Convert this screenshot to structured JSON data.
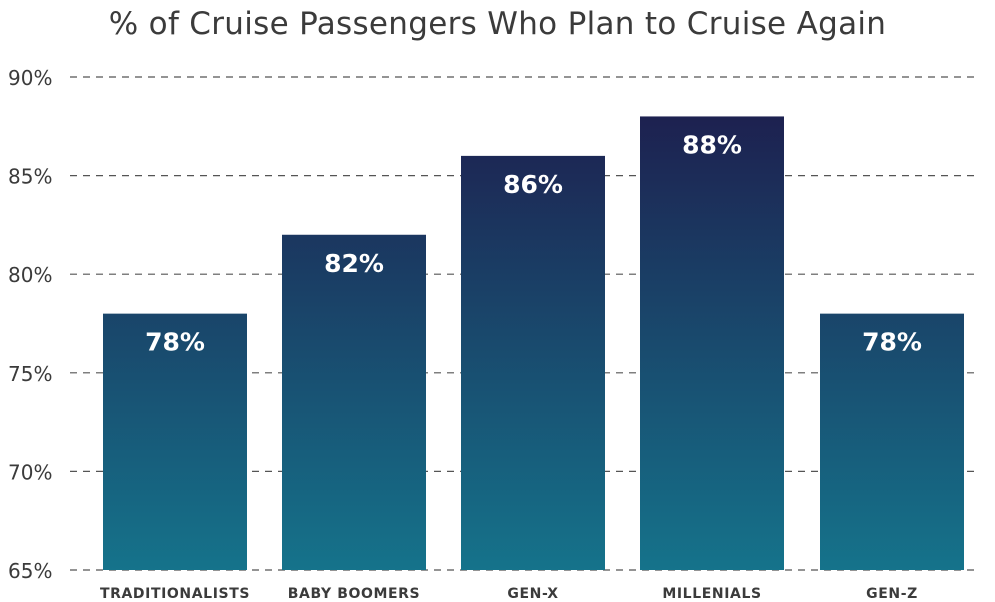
{
  "chart_data": {
    "type": "bar",
    "title": "% of Cruise Passengers Who Plan to Cruise Again",
    "categories": [
      "TRADITIONALISTS",
      "BABY BOOMERS",
      "GEN-X",
      "MILLENIALS",
      "GEN-Z"
    ],
    "values": [
      78,
      82,
      86,
      88,
      78
    ],
    "data_labels": [
      "78%",
      "82%",
      "86%",
      "88%",
      "78%"
    ],
    "ylim": [
      65,
      90
    ],
    "yticks": [
      65,
      70,
      75,
      80,
      85,
      90
    ],
    "ytick_labels": [
      "65%",
      "70%",
      "75%",
      "80%",
      "85%",
      "90%"
    ],
    "xlabel": "",
    "ylabel": "",
    "grid": true,
    "legend": "none",
    "colors": {
      "bar_top": "#1d2150",
      "bar_bottom": "#15738b",
      "grid": "#555555",
      "text": "#3b3b3b",
      "label": "#ffffff"
    }
  }
}
